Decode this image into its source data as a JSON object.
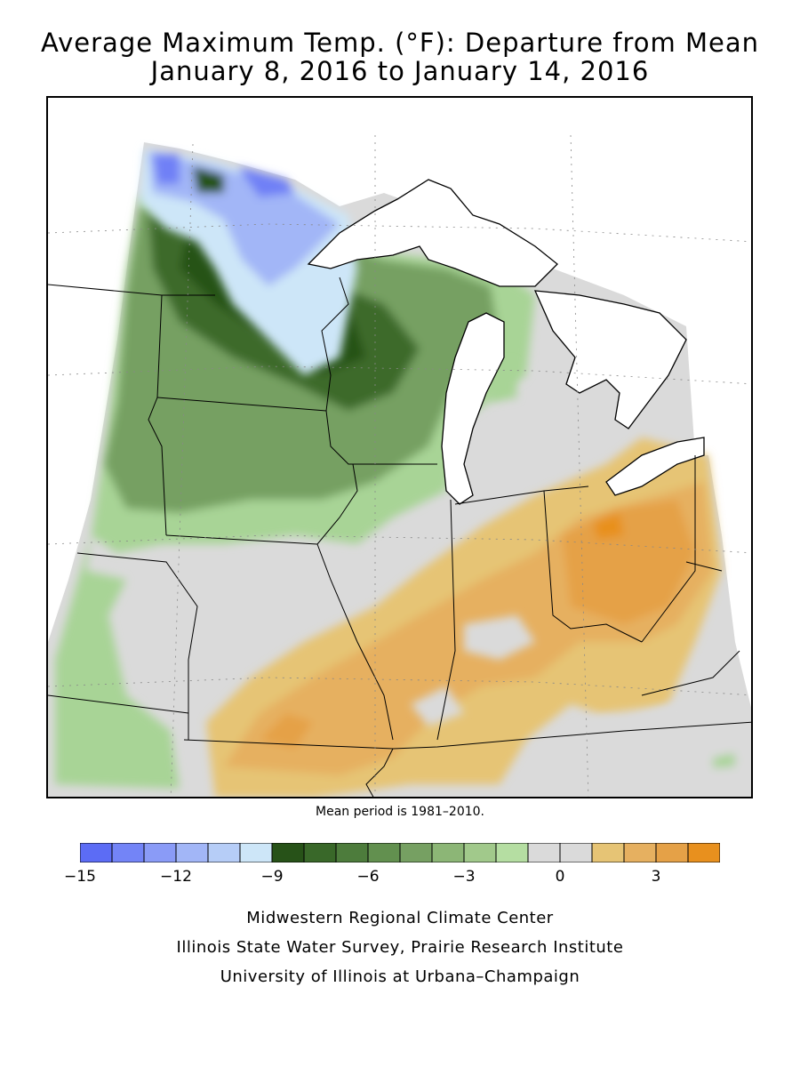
{
  "title_line1": "Average Maximum Temp. (°F): Departure from Mean",
  "title_line2": "January 8, 2016 to January 14, 2016",
  "mean_period": "Mean period is 1981–2010.",
  "legend": {
    "min": -15,
    "max": 5,
    "step": 1,
    "colors": [
      "#5c6cf5",
      "#7384f7",
      "#8a9bf7",
      "#a2b6f7",
      "#b6cdf7",
      "#cde6f8",
      "#275218",
      "#396829",
      "#4d7c3c",
      "#62904f",
      "#76a062",
      "#8cb676",
      "#a1c98b",
      "#b5dea2",
      "#dadada",
      "#dadada",
      "#e6c475",
      "#e6b060",
      "#e5a147",
      "#e8901e"
    ],
    "tick_labels": [
      {
        "value": -15,
        "label": "−15"
      },
      {
        "value": -12,
        "label": "−12"
      },
      {
        "value": -9,
        "label": "−9"
      },
      {
        "value": -6,
        "label": "−6"
      },
      {
        "value": -3,
        "label": "−3"
      },
      {
        "value": 0,
        "label": "0"
      },
      {
        "value": 3,
        "label": "3"
      }
    ]
  },
  "credits": {
    "line1": "Midwestern Regional Climate Center",
    "line2": "Illinois State Water Survey, Prairie Research Institute",
    "line3": "University of Illinois at Urbana–Champaign"
  }
}
